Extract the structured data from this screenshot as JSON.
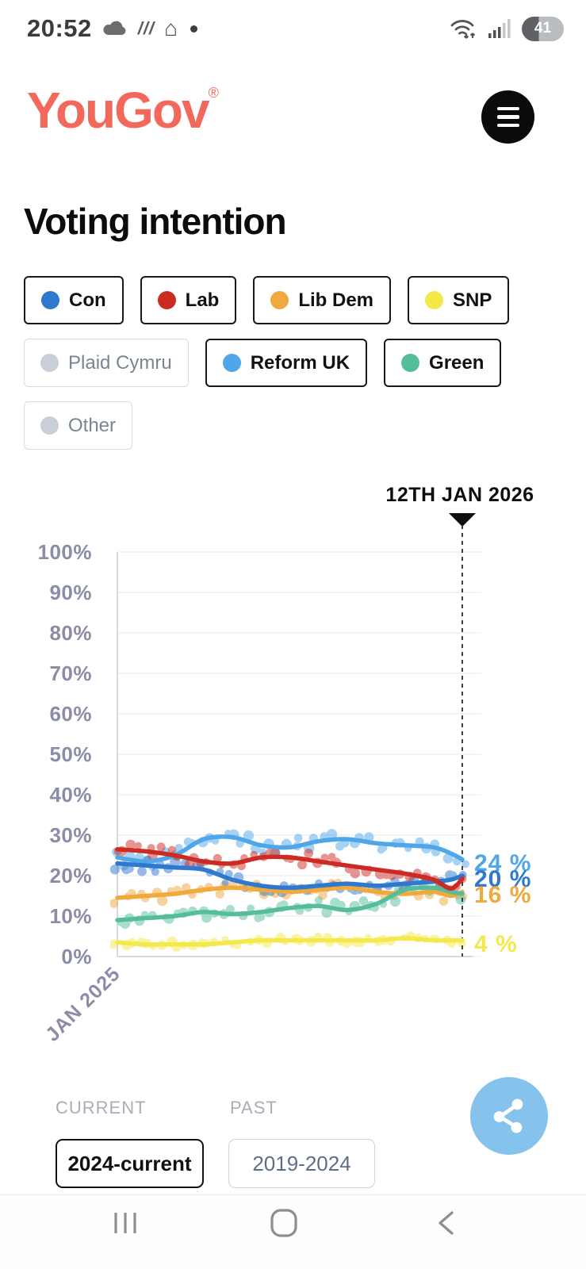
{
  "status_bar": {
    "time": "20:52",
    "battery_percent": "41",
    "left_icons": [
      "cloud-icon",
      "screen-cast-icon",
      "home-icon",
      "notification-dot"
    ],
    "right_icons": [
      "wifi-arrows-icon",
      "signal-bars-icon",
      "battery-indicator"
    ]
  },
  "header": {
    "logo_text": "YouGov",
    "registered_mark": "®",
    "logo_color": "#F2695C",
    "menu_icon": "hamburger-menu-icon"
  },
  "page": {
    "title": "Voting intention"
  },
  "party_toggles": [
    {
      "label": "Con",
      "dot_color": "#2E78CE",
      "active": true
    },
    {
      "label": "Lab",
      "dot_color": "#CC2B24",
      "active": true
    },
    {
      "label": "Lib Dem",
      "dot_color": "#EFA93C",
      "active": true
    },
    {
      "label": "SNP",
      "dot_color": "#F5E84A",
      "active": true
    },
    {
      "label": "Plaid Cymru",
      "dot_color": "#C9CED8",
      "active": false
    },
    {
      "label": "Reform UK",
      "dot_color": "#4FA6E8",
      "active": true
    },
    {
      "label": "Green",
      "dot_color": "#56BD9C",
      "active": true
    },
    {
      "label": "Other",
      "dot_color": "#C9CED8",
      "active": false
    }
  ],
  "chart_data": {
    "type": "line",
    "title": "Voting intention",
    "cursor_label": "12TH JAN 2026",
    "x_start_label": "JAN 2025",
    "x_range": [
      "Jan 2025",
      "12 Jan 2026"
    ],
    "ylim": [
      0,
      100
    ],
    "grid": true,
    "yticks": [
      {
        "value": 100,
        "label": "100%"
      },
      {
        "value": 90,
        "label": "90%"
      },
      {
        "value": 80,
        "label": "80%"
      },
      {
        "value": 70,
        "label": "70%"
      },
      {
        "value": 60,
        "label": "60%"
      },
      {
        "value": 50,
        "label": "50%"
      },
      {
        "value": 40,
        "label": "40%"
      },
      {
        "value": 30,
        "label": "30%"
      },
      {
        "value": 20,
        "label": "20%"
      },
      {
        "value": 10,
        "label": "10%"
      },
      {
        "value": 0,
        "label": "0%"
      }
    ],
    "x_months": [
      0,
      1,
      2,
      3,
      4,
      5,
      6,
      7,
      8,
      9,
      10,
      11,
      11.6,
      12
    ],
    "series": [
      {
        "name": "SNP",
        "color": "#F5E84A",
        "jitter": 0.8,
        "values": [
          3.5,
          3,
          3,
          3,
          3.5,
          4,
          4,
          4,
          4,
          4,
          4.5,
          4,
          4,
          4
        ]
      },
      {
        "name": "Lib Dem",
        "color": "#EFA93C",
        "jitter": 1.6,
        "values": [
          14.5,
          15,
          15.5,
          16.5,
          17,
          16.5,
          16,
          16.5,
          17,
          16,
          15.5,
          16,
          15,
          16
        ]
      },
      {
        "name": "Green",
        "color": "#56BD9C",
        "jitter": 1.5,
        "values": [
          9,
          9.5,
          10,
          11,
          10.5,
          11,
          12,
          12.5,
          11.5,
          13,
          16.5,
          17,
          16,
          15.5
        ]
      },
      {
        "name": "Reform UK",
        "color": "#4FA6E8",
        "jitter": 1.8,
        "values": [
          24.5,
          23.5,
          25,
          29,
          29.5,
          27.5,
          27,
          28.5,
          29,
          28,
          27.5,
          27,
          25.5,
          24
        ]
      },
      {
        "name": "Con",
        "color": "#2E78CE",
        "jitter": 1.6,
        "values": [
          23,
          22.5,
          22,
          21.5,
          19,
          17.5,
          17,
          17.5,
          18,
          17.5,
          18,
          18.5,
          19,
          20
        ]
      },
      {
        "name": "Lab",
        "color": "#CC2B24",
        "jitter": 1.7,
        "values": [
          26.5,
          26,
          25,
          23.5,
          23,
          24.5,
          24.5,
          23.5,
          22.5,
          21.5,
          20.5,
          19,
          16.8,
          19.2
        ]
      }
    ],
    "end_labels": [
      {
        "text": "24 %",
        "color": "#4FA6E8",
        "value": 24
      },
      {
        "text": "20 %",
        "color": "#2E78CE",
        "value": 20
      },
      {
        "text": "16 %",
        "color": "#EFA93C",
        "value": 16
      },
      {
        "text": "4 %",
        "color": "#F5E84A",
        "value": 4
      }
    ]
  },
  "period_selector": {
    "current_label": "CURRENT",
    "past_label": "PAST",
    "current_value": "2024-current",
    "past_value": "2019-2024"
  },
  "share_button": {
    "color": "#85C3EC",
    "icon": "share-nodes-icon"
  },
  "nav_bar": {
    "icons": [
      "recents-icon",
      "home-icon",
      "back-icon"
    ]
  }
}
